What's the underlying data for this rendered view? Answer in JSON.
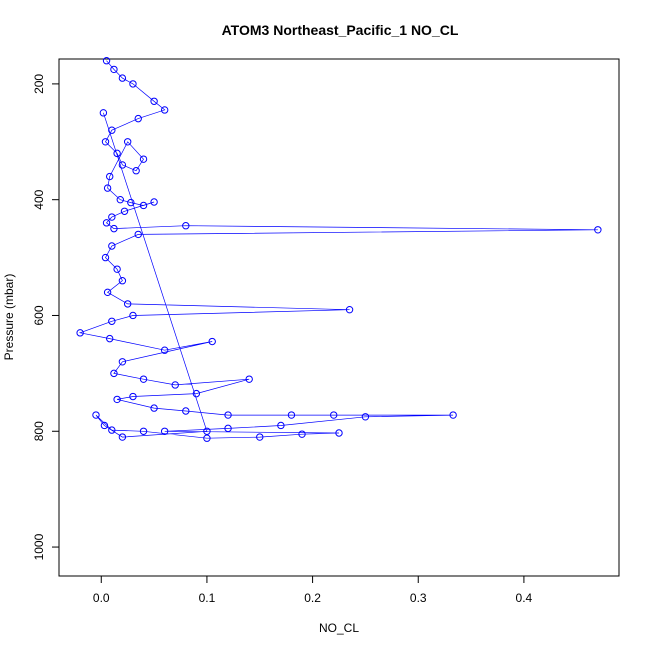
{
  "chart_data": {
    "type": "scatter",
    "title": "ATOM3 Northeast_Pacific_1 NO_CL",
    "xlabel": "NO_CL",
    "ylabel": "Pressure (mbar)",
    "xlim": [
      -0.04,
      0.49
    ],
    "ylim": [
      1050,
      157
    ],
    "y_reversed": true,
    "x_ticks": [
      0.0,
      0.1,
      0.2,
      0.3,
      0.4
    ],
    "x_tick_labels": [
      "0.0",
      "0.1",
      "0.2",
      "0.3",
      "0.4"
    ],
    "y_ticks": [
      200,
      400,
      600,
      800,
      1000
    ],
    "y_tick_labels": [
      "200",
      "400",
      "600",
      "800",
      "1000"
    ],
    "grid": false,
    "legend": "none",
    "colors": {
      "series": "#0000ff",
      "axis": "#000000"
    },
    "series": [
      {
        "x": [
          0.005,
          0.012,
          0.02,
          0.03,
          0.05,
          0.06,
          0.035,
          0.01,
          0.004,
          0.015,
          0.02,
          0.033,
          0.04,
          0.025,
          0.008,
          0.006,
          0.018,
          0.028,
          0.04,
          0.05,
          0.022,
          0.01,
          0.005,
          0.012,
          0.08,
          0.47,
          0.035,
          0.01,
          0.004,
          0.015,
          0.02,
          0.006,
          0.025,
          0.235,
          0.03,
          0.01,
          -0.02,
          0.008,
          0.06,
          0.105,
          0.02,
          0.012,
          0.04,
          0.07,
          0.14,
          0.09,
          0.03,
          0.015,
          0.05,
          0.08,
          0.12,
          0.18,
          0.22,
          0.333,
          0.25,
          0.17,
          0.12,
          0.06,
          0.225,
          0.19,
          0.15,
          0.1,
          0.04,
          0.01,
          -0.005,
          0.003,
          0.02,
          0.1,
          0.002
        ],
        "y": [
          160,
          175,
          190,
          200,
          230,
          245,
          260,
          280,
          300,
          320,
          340,
          350,
          330,
          300,
          360,
          380,
          400,
          405,
          410,
          404,
          420,
          430,
          440,
          450,
          445,
          452,
          460,
          480,
          500,
          520,
          540,
          560,
          580,
          590,
          600,
          610,
          630,
          640,
          660,
          645,
          680,
          700,
          710,
          720,
          710,
          735,
          740,
          745,
          760,
          765,
          772,
          772,
          772,
          772,
          775,
          790,
          795,
          800,
          803,
          805,
          810,
          812,
          800,
          798,
          772,
          790,
          810,
          800,
          250
        ]
      }
    ]
  }
}
